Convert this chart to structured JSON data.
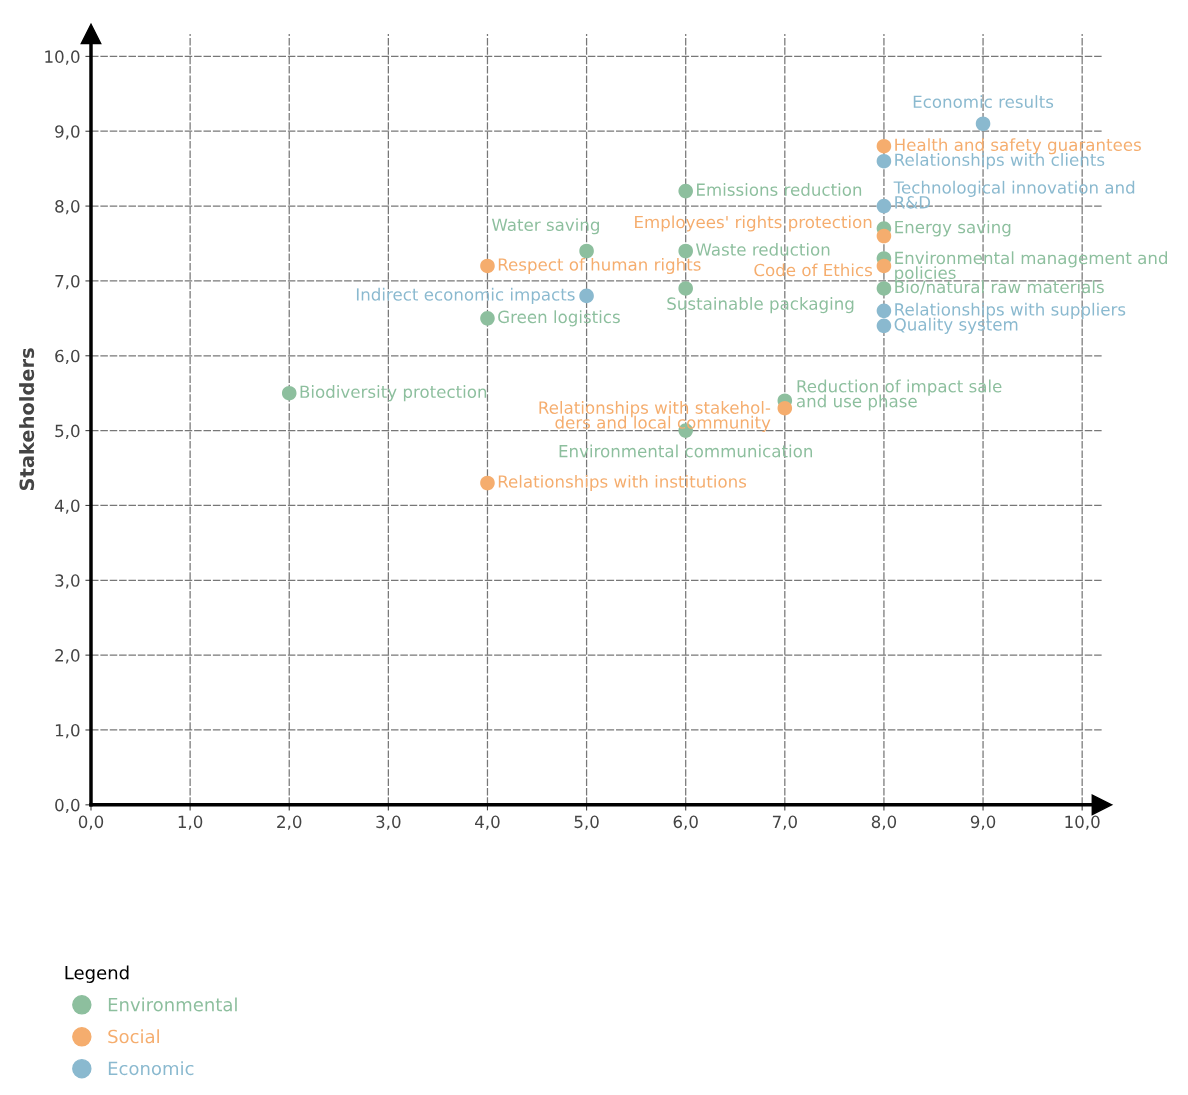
{
  "chart_data": {
    "type": "scatter",
    "ylabel": "Stakeholders",
    "legend_title": "Legend",
    "legend": "bottom left",
    "grid": true,
    "marker": "circle",
    "xlim": [
      0,
      10.2
    ],
    "ylim": [
      0,
      10.3
    ],
    "xticks": [
      {
        "value": 0,
        "label": "0,0"
      },
      {
        "value": 1,
        "label": "1,0"
      },
      {
        "value": 2,
        "label": "2,0"
      },
      {
        "value": 3,
        "label": "3,0"
      },
      {
        "value": 4,
        "label": "4,0"
      },
      {
        "value": 5,
        "label": "5,0"
      },
      {
        "value": 6,
        "label": "6,0"
      },
      {
        "value": 7,
        "label": "7,0"
      },
      {
        "value": 8,
        "label": "8,0"
      },
      {
        "value": 9,
        "label": "9,0"
      },
      {
        "value": 10,
        "label": "10,0"
      }
    ],
    "yticks": [
      {
        "value": 0,
        "label": "0,0"
      },
      {
        "value": 1,
        "label": "1,0"
      },
      {
        "value": 2,
        "label": "2,0"
      },
      {
        "value": 3,
        "label": "3,0"
      },
      {
        "value": 4,
        "label": "4,0"
      },
      {
        "value": 5,
        "label": "5,0"
      },
      {
        "value": 6,
        "label": "6,0"
      },
      {
        "value": 7,
        "label": "7,0"
      },
      {
        "value": 8,
        "label": "8,0"
      },
      {
        "value": 9,
        "label": "9,0"
      },
      {
        "value": 10,
        "label": "10,0"
      }
    ],
    "series": [
      {
        "name": "Environmental",
        "color": "#8dbf9e",
        "x": [
          8,
          8,
          8,
          6,
          5,
          6,
          6,
          4,
          2,
          7,
          6
        ],
        "values": [
          7.7,
          7.3,
          6.9,
          8.2,
          7.4,
          7.4,
          6.9,
          6.5,
          5.5,
          5.4,
          5.0
        ]
      },
      {
        "name": "Social",
        "color": "#f5ad6e",
        "x": [
          8,
          8,
          8,
          4,
          7,
          4
        ],
        "values": [
          8.8,
          7.6,
          7.2,
          7.2,
          5.3,
          4.3
        ]
      },
      {
        "name": "Economic",
        "color": "#8ab9cf",
        "x": [
          9,
          8,
          8,
          5,
          8,
          8
        ],
        "values": [
          9.1,
          8.6,
          8.0,
          6.8,
          6.6,
          6.4
        ]
      }
    ],
    "annotations": [
      {
        "text": "Economic results",
        "x": 9,
        "y": 9.1
      },
      {
        "text": "Health and safety guarantees",
        "x": 8,
        "y": 8.8
      },
      {
        "text": "Relationships with clients",
        "x": 8,
        "y": 8.6
      },
      {
        "text": "Technological innovation and\nR&D",
        "x": 8,
        "y": 8.0
      },
      {
        "text": "Energy saving",
        "x": 8,
        "y": 7.7
      },
      {
        "text": "Employees' rights protection",
        "x": 8,
        "y": 7.6
      },
      {
        "text": "Environmental management and\npolicies",
        "x": 8,
        "y": 7.3
      },
      {
        "text": "Code of Ethics",
        "x": 8,
        "y": 7.2
      },
      {
        "text": "Bio/natural raw materials",
        "x": 8,
        "y": 6.9
      },
      {
        "text": "Relationships with suppliers",
        "x": 8,
        "y": 6.6
      },
      {
        "text": "Quality system",
        "x": 8,
        "y": 6.4
      },
      {
        "text": "Emissions reduction",
        "x": 6,
        "y": 8.2
      },
      {
        "text": "Water saving",
        "x": 5,
        "y": 7.4
      },
      {
        "text": "Waste reduction",
        "x": 6,
        "y": 7.4
      },
      {
        "text": "Respect of human rights",
        "x": 4,
        "y": 7.2
      },
      {
        "text": "Sustainable packaging",
        "x": 6,
        "y": 6.9
      },
      {
        "text": "Indirect economic impacts",
        "x": 5,
        "y": 6.8
      },
      {
        "text": "Green logistics",
        "x": 4,
        "y": 6.5
      },
      {
        "text": "Biodiversity protection",
        "x": 2,
        "y": 5.5
      },
      {
        "text": "Relationships with stakehol-\nders and local community",
        "x": 7,
        "y": 5.3
      },
      {
        "text": "Reduction of impact sale\nand use phase",
        "x": 7,
        "y": 5.4
      },
      {
        "text": "Environmental communication",
        "x": 6,
        "y": 5.0
      },
      {
        "text": "Relationships with institutions",
        "x": 4,
        "y": 4.3
      }
    ]
  }
}
